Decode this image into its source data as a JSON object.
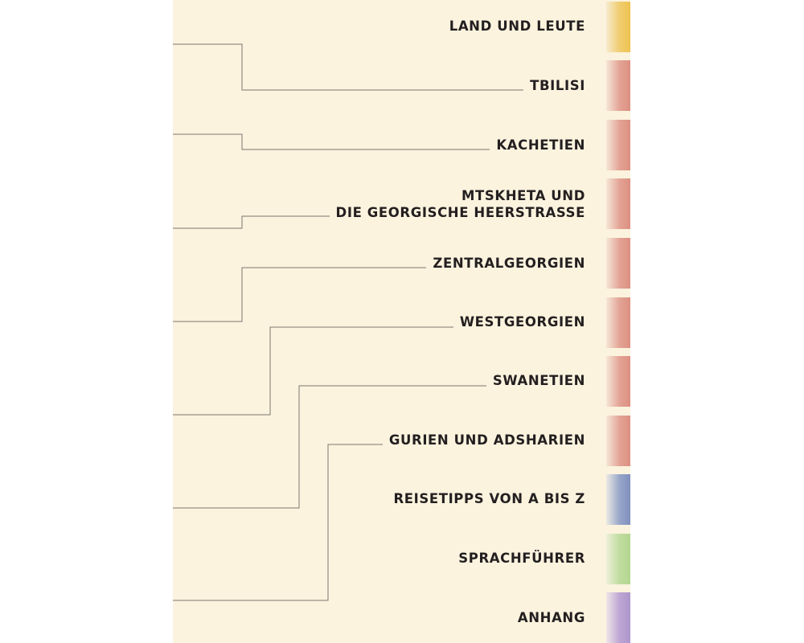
{
  "contents": {
    "entries": [
      {
        "label": "LAND UND LEUTE",
        "tab_color": "#eec24d"
      },
      {
        "label": "TBILISI",
        "tab_color": "#dc8f80"
      },
      {
        "label": "KACHETIEN",
        "tab_color": "#dc8f80"
      },
      {
        "label_line1": "MTSKHETA UND",
        "label_line2": "DIE GEORGISCHE HEERSTRASSE",
        "tab_color": "#dc8f80"
      },
      {
        "label": "ZENTRALGEORGIEN",
        "tab_color": "#dc8f80"
      },
      {
        "label": "WESTGEORGIEN",
        "tab_color": "#dc8f80"
      },
      {
        "label": "SWANETIEN",
        "tab_color": "#dc8f80"
      },
      {
        "label": "GURIEN UND ADSHARIEN",
        "tab_color": "#dc8f80"
      },
      {
        "label": "REISETIPPS VON A BIS Z",
        "tab_color": "#7f8fbd"
      },
      {
        "label": "SPRACHFÜHRER",
        "tab_color": "#b4d58f"
      },
      {
        "label": "ANHANG",
        "tab_color": "#ae95cb"
      }
    ]
  }
}
